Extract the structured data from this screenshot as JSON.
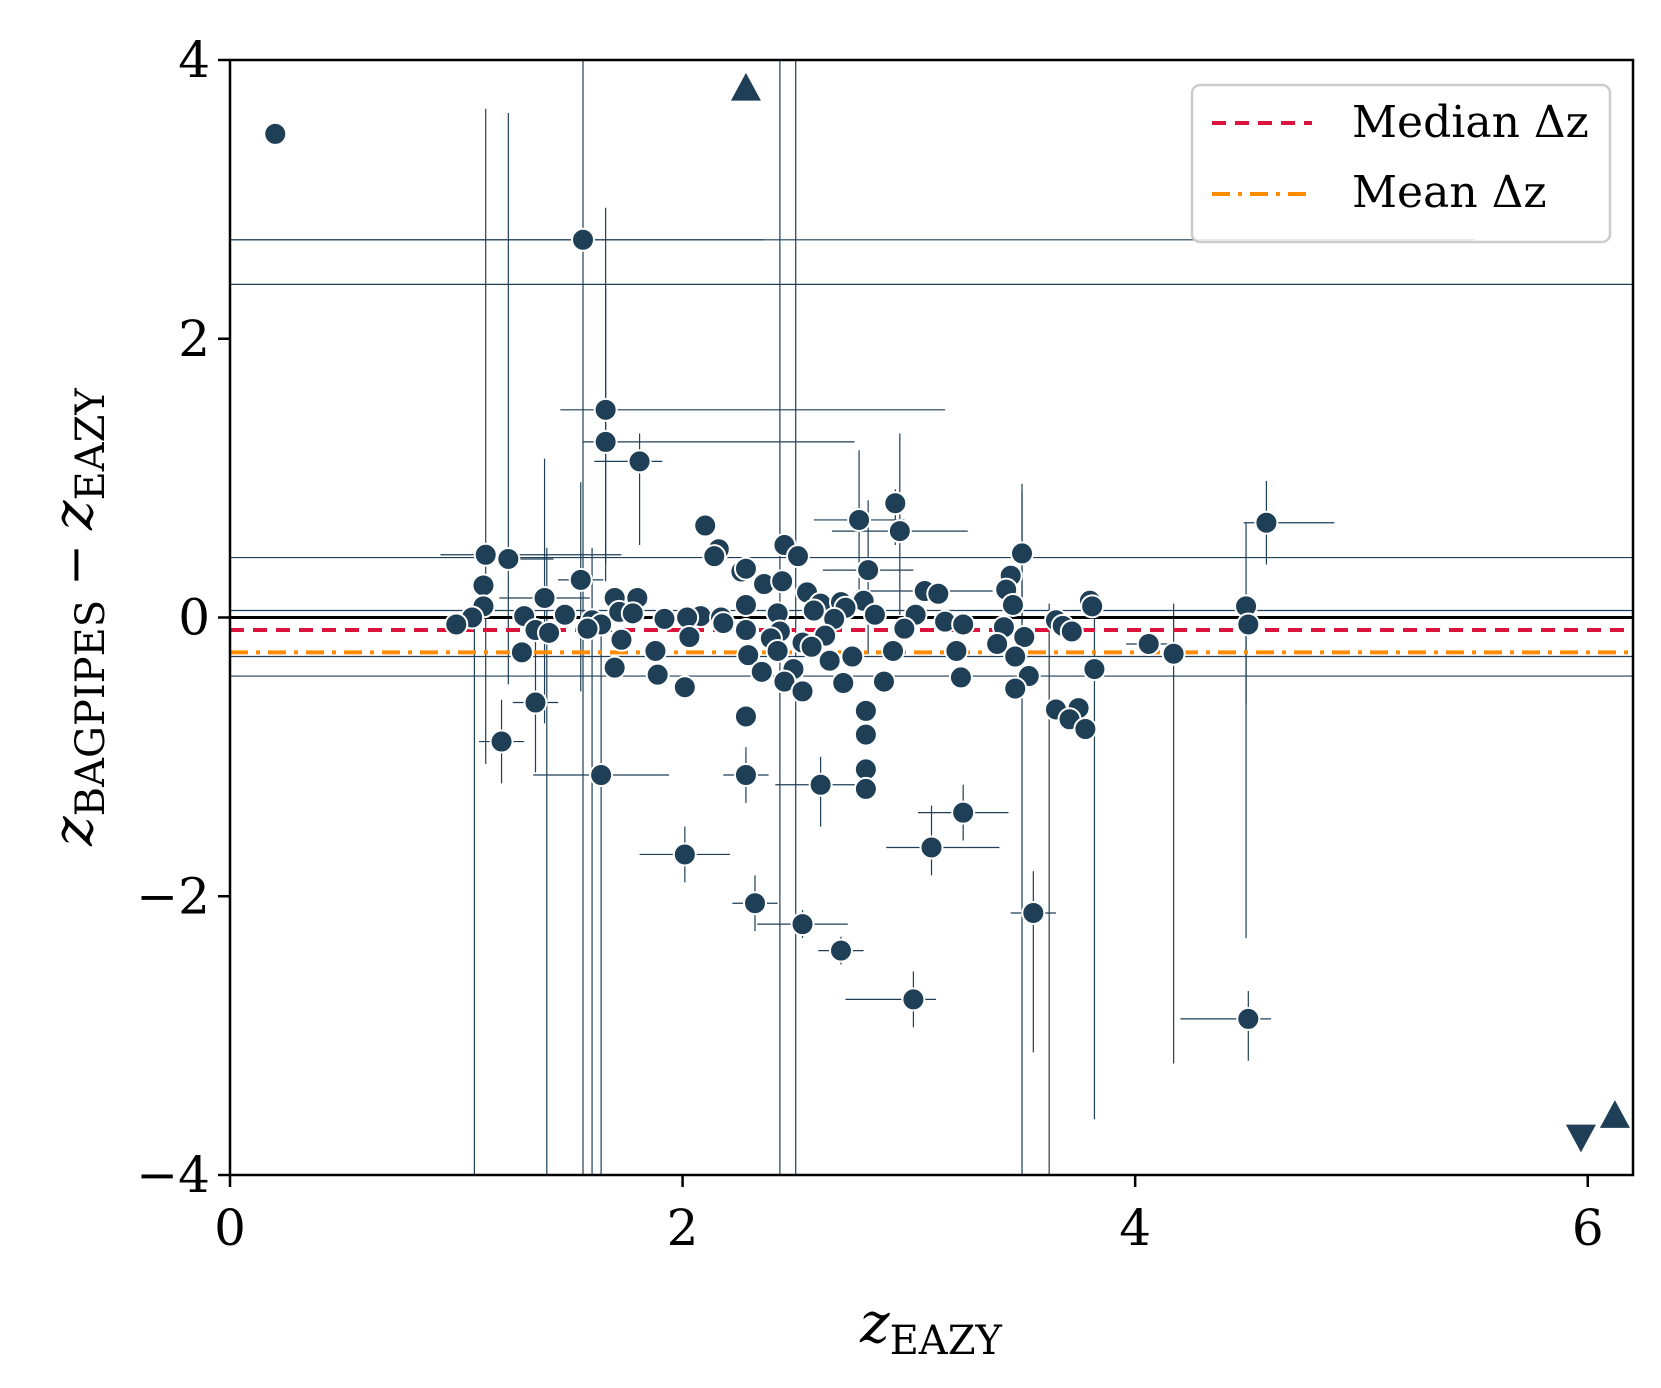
{
  "chart_data": {
    "type": "scatter",
    "title": "",
    "xlabel": "z_EAZY",
    "ylabel": "z_BAGPIPES − z_EAZY",
    "xlabel_parts": {
      "main": "z",
      "sub": "EAZY"
    },
    "ylabel_parts": {
      "main": "z",
      "sub": "BAGPIPES",
      "op": "−",
      "main2": "z",
      "sub2": "EAZY"
    },
    "xlim": [
      0,
      6.2
    ],
    "ylim": [
      -4,
      4
    ],
    "xticks": [
      0,
      2,
      4,
      6
    ],
    "xtick_labels": [
      "0",
      "2",
      "4",
      "6"
    ],
    "yticks": [
      -4,
      -2,
      0,
      2,
      4
    ],
    "ytick_labels": [
      "−4",
      "−2",
      "0",
      "2",
      "4"
    ],
    "grid": false,
    "colors": {
      "points": "#1f3f57",
      "median": "#dc143c",
      "mean": "#ff8c00",
      "zero": "#000000",
      "edge": "#ffffff"
    },
    "reference_lines": [
      {
        "name": "zero",
        "y": 0.0,
        "style": "solid"
      },
      {
        "name": "Median Δz",
        "y": -0.09,
        "style": "dashed"
      },
      {
        "name": "Mean Δz",
        "y": -0.25,
        "style": "dashdot"
      }
    ],
    "legend": {
      "placement": "top-right",
      "entries": [
        "Median Δz",
        "Mean Δz"
      ]
    },
    "points": [
      {
        "x": 0.2,
        "y": 3.47
      },
      {
        "x": 1.56,
        "y": 2.71,
        "xerr": [
          1.6,
          0.8
        ],
        "yerr": [
          7,
          2
        ]
      },
      {
        "x": 1.66,
        "y": 1.49,
        "xerr": [
          0.2,
          1.5
        ],
        "yerr": [
          1.1,
          1.45
        ]
      },
      {
        "x": 1.66,
        "y": 1.26,
        "xerr": [
          0.1,
          1.1
        ],
        "yerr": [
          1,
          1.1
        ]
      },
      {
        "x": 1.81,
        "y": 1.12,
        "xerr": [
          0.2,
          0.1
        ],
        "yerr": [
          0.6,
          0.2
        ]
      },
      {
        "x": 2.94,
        "y": 0.82,
        "yerr": [
          0.3,
          0.1
        ]
      },
      {
        "x": 2.96,
        "y": 0.62,
        "xerr": [
          0.3,
          0.3
        ],
        "yerr": [
          0.6,
          0.7
        ]
      },
      {
        "x": 2.78,
        "y": 0.7,
        "xerr": [
          0.2,
          0.2
        ],
        "yerr": [
          0.5,
          0.5
        ]
      },
      {
        "x": 4.58,
        "y": 0.68,
        "xerr": [
          0.1,
          0.3
        ],
        "yerr": [
          0.3,
          0.3
        ]
      },
      {
        "x": 2.1,
        "y": 0.66
      },
      {
        "x": 2.16,
        "y": 0.49
      },
      {
        "x": 2.14,
        "y": 0.44
      },
      {
        "x": 2.45,
        "y": 0.52
      },
      {
        "x": 2.51,
        "y": 0.44
      },
      {
        "x": 3.5,
        "y": 0.46,
        "yerr": [
          0.5,
          0.5
        ]
      },
      {
        "x": 1.13,
        "y": 0.45,
        "xerr": [
          0.2,
          0.6
        ],
        "yerr": [
          1.5,
          3.2
        ]
      },
      {
        "x": 1.23,
        "y": 0.42,
        "xerr": [
          0.1,
          0.2
        ],
        "yerr": [
          0.9,
          3.2
        ]
      },
      {
        "x": 2.26,
        "y": 0.33
      },
      {
        "x": 2.28,
        "y": 0.35
      },
      {
        "x": 2.82,
        "y": 0.34,
        "xerr": [
          0.2,
          0.2
        ],
        "yerr": [
          0.6,
          0.5
        ]
      },
      {
        "x": 3.45,
        "y": 0.3
      },
      {
        "x": 1.55,
        "y": 0.27,
        "xerr": [
          0.1,
          0.1
        ],
        "yerr": [
          0.8,
          0.7
        ]
      },
      {
        "x": 2.36,
        "y": 0.24
      },
      {
        "x": 2.44,
        "y": 0.26
      },
      {
        "x": 1.12,
        "y": 0.23
      },
      {
        "x": 3.07,
        "y": 0.19,
        "xerr": [
          0.3,
          0.3
        ]
      },
      {
        "x": 3.13,
        "y": 0.17
      },
      {
        "x": 2.55,
        "y": 0.18
      },
      {
        "x": 3.43,
        "y": 0.2
      },
      {
        "x": 1.39,
        "y": 0.14,
        "xerr": [
          0.2,
          0.2
        ],
        "yerr": [
          0.9,
          1
        ]
      },
      {
        "x": 1.7,
        "y": 0.14
      },
      {
        "x": 1.8,
        "y": 0.14
      },
      {
        "x": 2.61,
        "y": 0.1
      },
      {
        "x": 2.8,
        "y": 0.12
      },
      {
        "x": 3.8,
        "y": 0.12
      },
      {
        "x": 2.7,
        "y": 0.11
      },
      {
        "x": 2.28,
        "y": 0.09
      },
      {
        "x": 3.46,
        "y": 0.09
      },
      {
        "x": 1.12,
        "y": 0.08
      },
      {
        "x": 3.81,
        "y": 0.08
      },
      {
        "x": 4.49,
        "y": 0.08,
        "xerr": [
          0.05,
          0.05
        ],
        "yerr": [
          0.7,
          0.6
        ]
      },
      {
        "x": 2.72,
        "y": 0.07
      },
      {
        "x": 2.58,
        "y": 0.05
      },
      {
        "x": 2.42,
        "y": 0.03
      },
      {
        "x": 1.72,
        "y": 0.04
      },
      {
        "x": 1.78,
        "y": 0.03
      },
      {
        "x": 2.08,
        "y": 0.01
      },
      {
        "x": 1.3,
        "y": 0.01
      },
      {
        "x": 1.48,
        "y": 0.02
      },
      {
        "x": 2.17,
        "y": 0.0
      },
      {
        "x": 2.85,
        "y": 0.02
      },
      {
        "x": 3.03,
        "y": 0.02
      },
      {
        "x": 1.07,
        "y": 0.0
      },
      {
        "x": 1.6,
        "y": -0.02
      },
      {
        "x": 1.92,
        "y": -0.01
      },
      {
        "x": 2.02,
        "y": 0.0
      },
      {
        "x": 2.67,
        "y": -0.01
      },
      {
        "x": 3.16,
        "y": -0.03
      },
      {
        "x": 3.65,
        "y": -0.02
      },
      {
        "x": 1.0,
        "y": -0.05
      },
      {
        "x": 1.64,
        "y": -0.05
      },
      {
        "x": 2.18,
        "y": -0.04
      },
      {
        "x": 3.24,
        "y": -0.05
      },
      {
        "x": 3.42,
        "y": -0.07
      },
      {
        "x": 3.68,
        "y": -0.06
      },
      {
        "x": 4.5,
        "y": -0.05
      },
      {
        "x": 1.35,
        "y": -0.09
      },
      {
        "x": 1.58,
        "y": -0.08
      },
      {
        "x": 2.28,
        "y": -0.09
      },
      {
        "x": 2.43,
        "y": -0.1
      },
      {
        "x": 2.98,
        "y": -0.08
      },
      {
        "x": 3.72,
        "y": -0.1
      },
      {
        "x": 1.41,
        "y": -0.11
      },
      {
        "x": 2.03,
        "y": -0.14
      },
      {
        "x": 2.39,
        "y": -0.15
      },
      {
        "x": 3.51,
        "y": -0.14
      },
      {
        "x": 1.73,
        "y": -0.16
      },
      {
        "x": 2.63,
        "y": -0.13
      },
      {
        "x": 2.53,
        "y": -0.18
      },
      {
        "x": 3.39,
        "y": -0.19
      },
      {
        "x": 4.06,
        "y": -0.19,
        "xerr": [
          0.1,
          0.1
        ]
      },
      {
        "x": 2.57,
        "y": -0.21
      },
      {
        "x": 1.88,
        "y": -0.24
      },
      {
        "x": 2.93,
        "y": -0.24
      },
      {
        "x": 3.21,
        "y": -0.24
      },
      {
        "x": 1.29,
        "y": -0.25
      },
      {
        "x": 2.42,
        "y": -0.24
      },
      {
        "x": 3.47,
        "y": -0.28
      },
      {
        "x": 4.17,
        "y": -0.26
      },
      {
        "x": 2.29,
        "y": -0.27
      },
      {
        "x": 2.65,
        "y": -0.31
      },
      {
        "x": 2.75,
        "y": -0.28
      },
      {
        "x": 1.7,
        "y": -0.36
      },
      {
        "x": 2.35,
        "y": -0.39
      },
      {
        "x": 2.49,
        "y": -0.37
      },
      {
        "x": 3.82,
        "y": -0.37
      },
      {
        "x": 1.89,
        "y": -0.41
      },
      {
        "x": 3.23,
        "y": -0.43
      },
      {
        "x": 3.53,
        "y": -0.42
      },
      {
        "x": 2.45,
        "y": -0.46
      },
      {
        "x": 2.71,
        "y": -0.47
      },
      {
        "x": 2.89,
        "y": -0.46
      },
      {
        "x": 2.01,
        "y": -0.5
      },
      {
        "x": 3.47,
        "y": -0.51
      },
      {
        "x": 2.53,
        "y": -0.53
      },
      {
        "x": 1.35,
        "y": -0.61,
        "xerr": [
          0.1,
          0.1
        ],
        "yerr": [
          0.5,
          0.5
        ]
      },
      {
        "x": 3.65,
        "y": -0.66
      },
      {
        "x": 3.75,
        "y": -0.65
      },
      {
        "x": 2.81,
        "y": -0.67
      },
      {
        "x": 2.28,
        "y": -0.71
      },
      {
        "x": 3.71,
        "y": -0.73
      },
      {
        "x": 3.78,
        "y": -0.8
      },
      {
        "x": 2.81,
        "y": -0.84
      },
      {
        "x": 1.2,
        "y": -0.89,
        "xerr": [
          0.1,
          0.1
        ],
        "yerr": [
          0.3,
          0.3
        ]
      },
      {
        "x": 2.81,
        "y": -1.09
      },
      {
        "x": 1.64,
        "y": -1.13,
        "xerr": [
          0.3,
          0.3
        ],
        "yerr": [
          3,
          1.1
        ]
      },
      {
        "x": 2.28,
        "y": -1.13,
        "xerr": [
          0.1,
          0.1
        ],
        "yerr": [
          0.2,
          0.2
        ]
      },
      {
        "x": 2.61,
        "y": -1.2,
        "xerr": [
          0.2,
          0.2
        ],
        "yerr": [
          0.3,
          0.2
        ]
      },
      {
        "x": 2.81,
        "y": -1.23
      },
      {
        "x": 3.24,
        "y": -1.4,
        "xerr": [
          0.2,
          0.2
        ],
        "yerr": [
          0.2,
          0.2
        ]
      },
      {
        "x": 3.1,
        "y": -1.65,
        "xerr": [
          0.2,
          0.3
        ],
        "yerr": [
          0.2,
          0.3
        ]
      },
      {
        "x": 2.01,
        "y": -1.7,
        "xerr": [
          0.2,
          0.2
        ],
        "yerr": [
          0.2,
          0.2
        ]
      },
      {
        "x": 2.32,
        "y": -2.05,
        "xerr": [
          0.1,
          0.1
        ],
        "yerr": [
          0.2,
          0.2
        ]
      },
      {
        "x": 3.55,
        "y": -2.12,
        "xerr": [
          0.1,
          0.1
        ],
        "yerr": [
          1,
          0.3
        ]
      },
      {
        "x": 2.53,
        "y": -2.2,
        "xerr": [
          0.2,
          0.2
        ],
        "yerr": [
          0.1,
          0.1
        ]
      },
      {
        "x": 2.7,
        "y": -2.39,
        "xerr": [
          0.1,
          0.1
        ],
        "yerr": [
          0.1,
          0.1
        ]
      },
      {
        "x": 3.02,
        "y": -2.74,
        "xerr": [
          0.3,
          0.1
        ],
        "yerr": [
          0.2,
          0.2
        ]
      },
      {
        "x": 4.5,
        "y": -2.88,
        "xerr": [
          0.3,
          0.1
        ],
        "yerr": [
          0.3,
          0.2
        ]
      }
    ],
    "extra_errorbars": [
      {
        "x": 2.43,
        "y": 0.0,
        "yerr": [
          4.5,
          4.5
        ]
      },
      {
        "x": 2.5,
        "y": 0.0,
        "yerr": [
          4.5,
          4.5
        ]
      },
      {
        "x": 1.08,
        "y": 0.0,
        "yerr": [
          4.5,
          0.1
        ]
      },
      {
        "x": 1.4,
        "y": 0.0,
        "yerr": [
          4.5,
          0.5
        ]
      },
      {
        "x": 1.6,
        "y": 0.0,
        "yerr": [
          4.5,
          0.5
        ]
      },
      {
        "x": 3.5,
        "y": 0.0,
        "yerr": [
          4.5,
          0.9
        ]
      },
      {
        "x": 3.62,
        "y": 0.0,
        "yerr": [
          4.3,
          0.1
        ]
      },
      {
        "x": 3.82,
        "y": 0.0,
        "yerr": [
          3.6,
          0.1
        ]
      },
      {
        "x": 4.17,
        "y": 0.0,
        "yerr": [
          3.2,
          0.1
        ]
      },
      {
        "x": 4.49,
        "y": 0.0,
        "yerr": [
          2.3,
          0.1
        ]
      },
      {
        "x": 3.0,
        "y": 2.71,
        "xerr": [
          3.1,
          2.5
        ]
      },
      {
        "x": 3.0,
        "y": 2.39,
        "xerr": [
          3.1,
          3.2
        ]
      },
      {
        "x": 3.0,
        "y": 0.43,
        "xerr": [
          3.1,
          3.2
        ]
      },
      {
        "x": 3.0,
        "y": -0.28,
        "xerr": [
          3.1,
          3.2
        ]
      },
      {
        "x": 3.0,
        "y": -0.42,
        "xerr": [
          3.1,
          3.2
        ]
      },
      {
        "x": 3.0,
        "y": 0.05,
        "xerr": [
          3.1,
          3.2
        ]
      }
    ],
    "limit_markers": [
      {
        "x": 2.28,
        "y": 3.8,
        "marker": "triangle-up"
      },
      {
        "x": 5.97,
        "y": -3.73,
        "marker": "triangle-down"
      },
      {
        "x": 6.12,
        "y": -3.57,
        "marker": "triangle-up"
      }
    ]
  }
}
